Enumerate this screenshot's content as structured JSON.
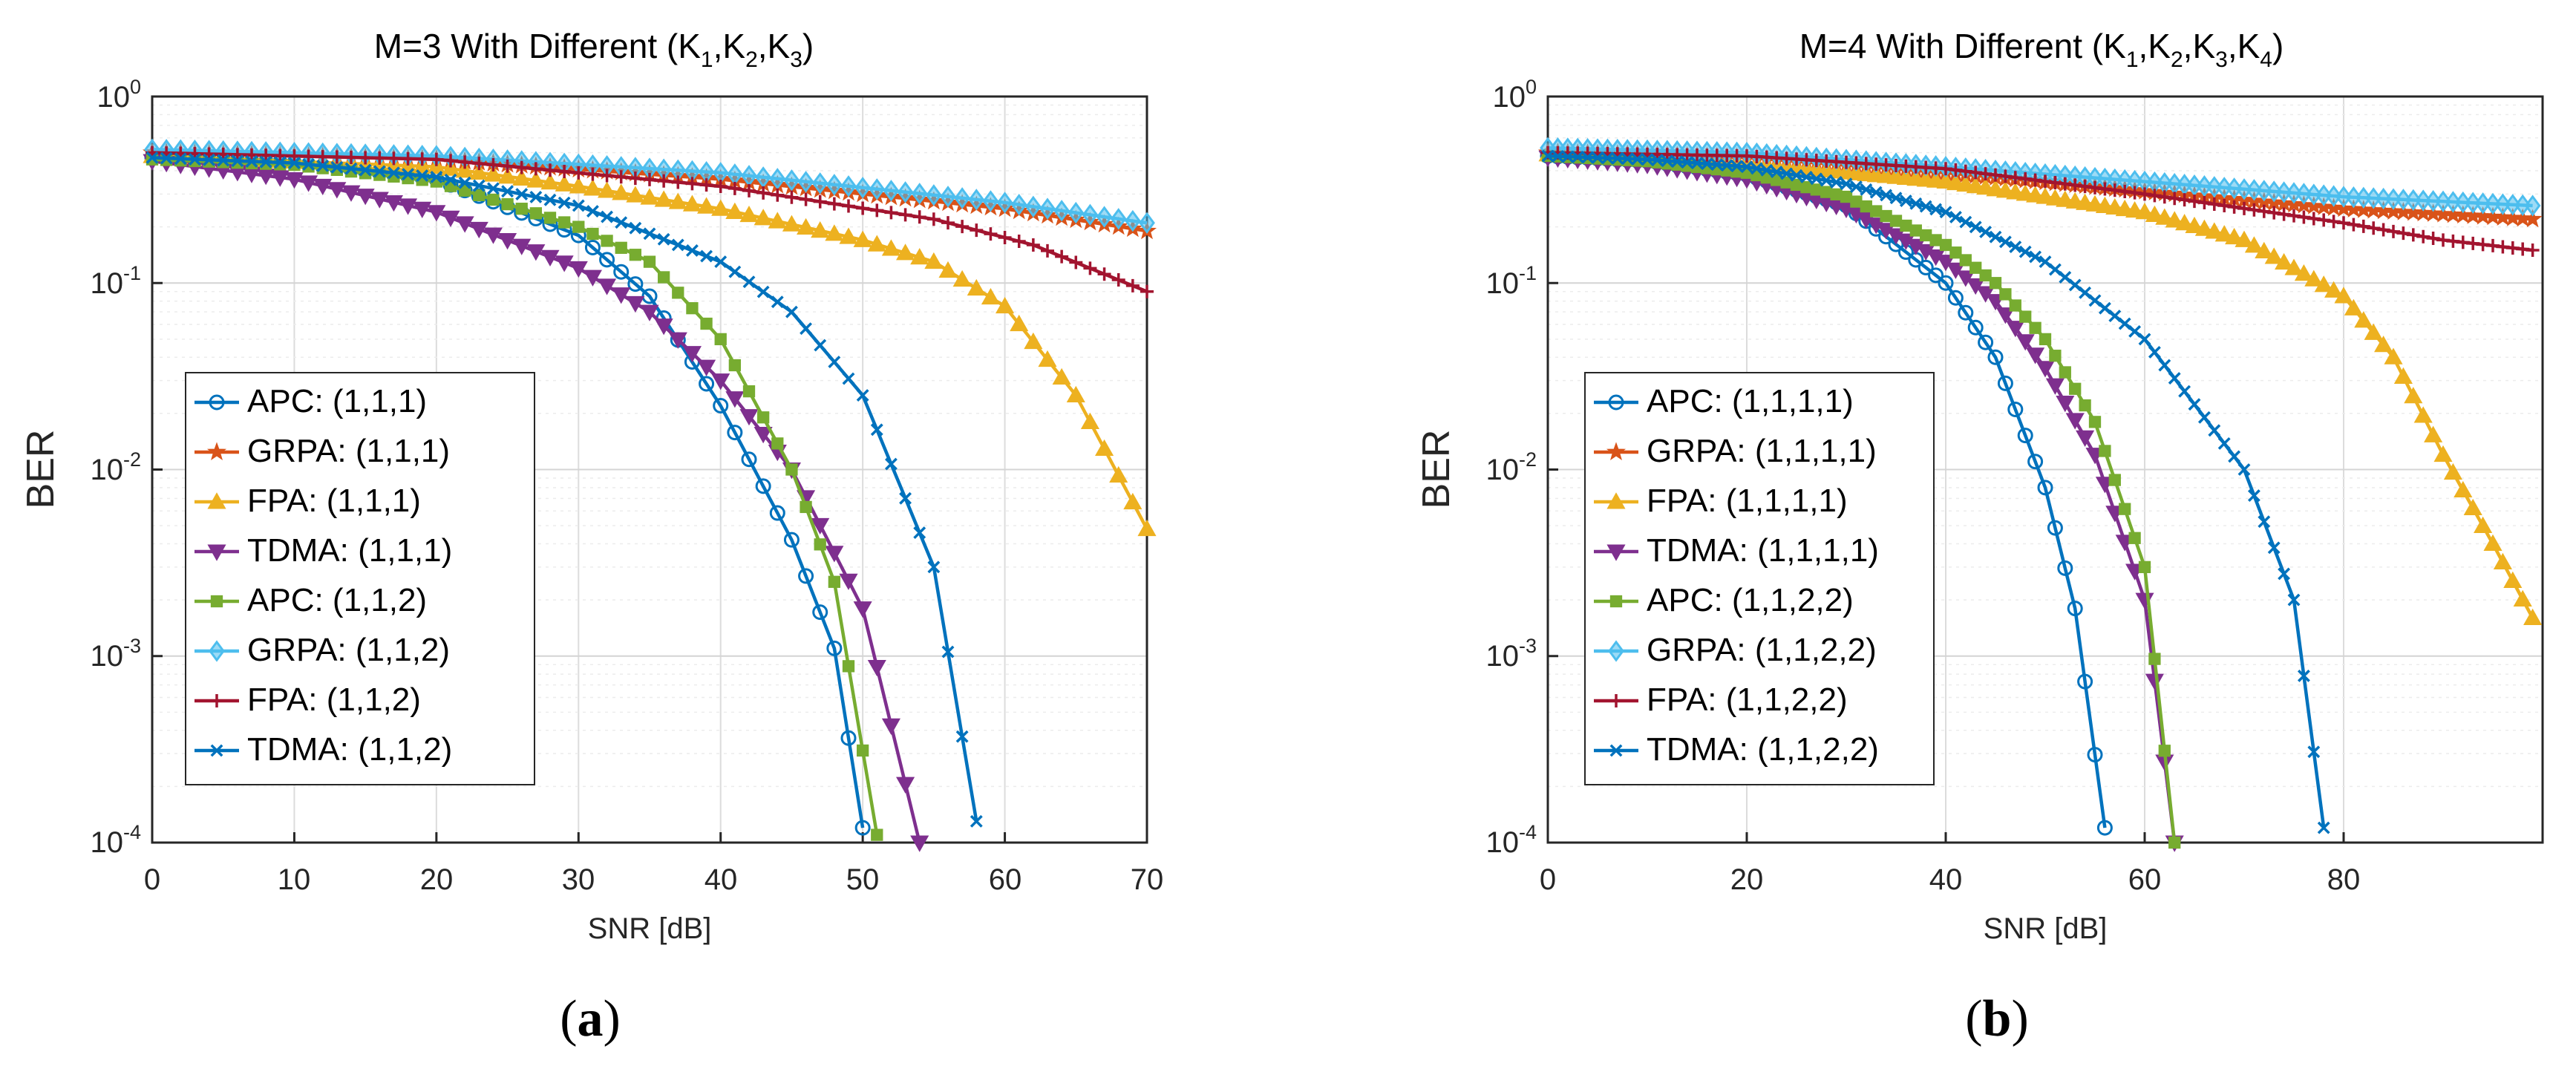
{
  "figure": {
    "caption_open": "(",
    "caption_close": ")"
  },
  "chart_data": [
    {
      "type": "line",
      "panel_label": "a",
      "title_prefix": "M=3 With Different (",
      "title_vars": [
        "K",
        "K",
        "K"
      ],
      "title_subscripts": [
        "1",
        "2",
        "3"
      ],
      "title_suffix": ")",
      "xlabel": "SNR [dB]",
      "ylabel": "BER",
      "yscale": "log",
      "xlim": [
        0,
        70
      ],
      "ylim": [
        0.0001,
        1
      ],
      "xticks": [
        0,
        10,
        20,
        30,
        40,
        50,
        60,
        70
      ],
      "xtick_labels": [
        "0",
        "10",
        "20",
        "30",
        "40",
        "50",
        "60",
        "70"
      ],
      "yticks": [
        1,
        0.1,
        0.01,
        0.001,
        0.0001
      ],
      "ytick_bases": [
        "10",
        "10",
        "10",
        "10",
        "10"
      ],
      "ytick_exponents": [
        "0",
        "-1",
        "-2",
        "-3",
        "-4"
      ],
      "grid": true,
      "legend_position": "lower-left",
      "series": [
        {
          "name": "APC: (1,1,1)",
          "color": "#0072BD",
          "marker": "circle",
          "x_end": 50,
          "points": [
            [
              0,
              0.47
            ],
            [
              10,
              0.44
            ],
            [
              20,
              0.36
            ],
            [
              30,
              0.18
            ],
            [
              35,
              0.085
            ],
            [
              40,
              0.022
            ],
            [
              45,
              0.0042
            ],
            [
              48,
              0.0011
            ],
            [
              50,
              0.00012
            ]
          ]
        },
        {
          "name": "GRPA: (1,1,1)",
          "color": "#D95319",
          "marker": "star",
          "x_end": 70,
          "points": [
            [
              0,
              0.5
            ],
            [
              20,
              0.46
            ],
            [
              40,
              0.36
            ],
            [
              60,
              0.25
            ],
            [
              70,
              0.19
            ]
          ]
        },
        {
          "name": "FPA: (1,1,1)",
          "color": "#EDB120",
          "marker": "triangle-up",
          "x_end": 70,
          "points": [
            [
              0,
              0.48
            ],
            [
              20,
              0.42
            ],
            [
              30,
              0.33
            ],
            [
              40,
              0.25
            ],
            [
              50,
              0.17
            ],
            [
              55,
              0.13
            ],
            [
              60,
              0.075
            ],
            [
              65,
              0.025
            ],
            [
              70,
              0.0048
            ]
          ]
        },
        {
          "name": "TDMA: (1,1,1)",
          "color": "#7E2F8E",
          "marker": "triangle-down",
          "x_end": 54,
          "points": [
            [
              0,
              0.45
            ],
            [
              10,
              0.36
            ],
            [
              20,
              0.24
            ],
            [
              30,
              0.12
            ],
            [
              35,
              0.07
            ],
            [
              40,
              0.03
            ],
            [
              45,
              0.01
            ],
            [
              50,
              0.0018
            ],
            [
              54,
              0.0001
            ]
          ]
        },
        {
          "name": "APC: (1,1,2)",
          "color": "#77AC30",
          "marker": "square",
          "x_end": 51,
          "points": [
            [
              0,
              0.46
            ],
            [
              10,
              0.43
            ],
            [
              20,
              0.35
            ],
            [
              30,
              0.2
            ],
            [
              35,
              0.13
            ],
            [
              40,
              0.05
            ],
            [
              45,
              0.01
            ],
            [
              48,
              0.0025
            ],
            [
              51,
              0.00011
            ]
          ]
        },
        {
          "name": "GRPA: (1,1,2)",
          "color": "#4DBEEE",
          "marker": "diamond",
          "x_end": 70,
          "points": [
            [
              0,
              0.52
            ],
            [
              20,
              0.48
            ],
            [
              40,
              0.39
            ],
            [
              60,
              0.27
            ],
            [
              70,
              0.21
            ]
          ]
        },
        {
          "name": "FPA: (1,1,2)",
          "color": "#A2142F",
          "marker": "plus",
          "x_end": 70,
          "points": [
            [
              0,
              0.5
            ],
            [
              20,
              0.46
            ],
            [
              40,
              0.33
            ],
            [
              55,
              0.22
            ],
            [
              62,
              0.16
            ],
            [
              70,
              0.09
            ]
          ]
        },
        {
          "name": "TDMA: (1,1,2)",
          "color": "#0072BD",
          "marker": "x",
          "x_end": 58,
          "points": [
            [
              0,
              0.47
            ],
            [
              10,
              0.44
            ],
            [
              20,
              0.37
            ],
            [
              30,
              0.26
            ],
            [
              40,
              0.13
            ],
            [
              45,
              0.07
            ],
            [
              50,
              0.025
            ],
            [
              55,
              0.003
            ],
            [
              58,
              0.00013
            ]
          ]
        }
      ]
    },
    {
      "type": "line",
      "panel_label": "b",
      "title_prefix": "M=4 With Different (",
      "title_vars": [
        "K",
        "K",
        "K",
        "K"
      ],
      "title_subscripts": [
        "1",
        "2",
        "3",
        "4"
      ],
      "title_suffix": ")",
      "xlabel": "SNR [dB]",
      "ylabel": "BER",
      "yscale": "log",
      "xlim": [
        0,
        100
      ],
      "ylim": [
        0.0001,
        1
      ],
      "xticks": [
        0,
        20,
        40,
        60,
        80
      ],
      "xtick_labels": [
        "0",
        "20",
        "40",
        "60",
        "80"
      ],
      "yticks": [
        1,
        0.1,
        0.01,
        0.001,
        0.0001
      ],
      "ytick_bases": [
        "10",
        "10",
        "10",
        "10",
        "10"
      ],
      "ytick_exponents": [
        "0",
        "-1",
        "-2",
        "-3",
        "-4"
      ],
      "grid": true,
      "legend_position": "lower-left",
      "series": [
        {
          "name": "APC: (1,1,1,1)",
          "color": "#0072BD",
          "marker": "circle",
          "x_end": 56,
          "points": [
            [
              0,
              0.48
            ],
            [
              10,
              0.45
            ],
            [
              20,
              0.38
            ],
            [
              30,
              0.26
            ],
            [
              40,
              0.1
            ],
            [
              45,
              0.04
            ],
            [
              50,
              0.008
            ],
            [
              53,
              0.0018
            ],
            [
              56,
              0.00012
            ]
          ]
        },
        {
          "name": "GRPA: (1,1,1,1)",
          "color": "#D95319",
          "marker": "star",
          "x_end": 99,
          "points": [
            [
              0,
              0.5
            ],
            [
              20,
              0.47
            ],
            [
              40,
              0.39
            ],
            [
              60,
              0.31
            ],
            [
              80,
              0.25
            ],
            [
              99,
              0.22
            ]
          ]
        },
        {
          "name": "FPA: (1,1,1,1)",
          "color": "#EDB120",
          "marker": "triangle-up",
          "x_end": 99,
          "points": [
            [
              0,
              0.49
            ],
            [
              20,
              0.44
            ],
            [
              40,
              0.35
            ],
            [
              60,
              0.24
            ],
            [
              70,
              0.17
            ],
            [
              80,
              0.085
            ],
            [
              85,
              0.04
            ],
            [
              90,
              0.012
            ],
            [
              95,
              0.004
            ],
            [
              99,
              0.0016
            ]
          ]
        },
        {
          "name": "TDMA: (1,1,1,1)",
          "color": "#7E2F8E",
          "marker": "triangle-down",
          "x_end": 63,
          "points": [
            [
              0,
              0.47
            ],
            [
              10,
              0.43
            ],
            [
              20,
              0.36
            ],
            [
              30,
              0.25
            ],
            [
              40,
              0.13
            ],
            [
              45,
              0.08
            ],
            [
              50,
              0.035
            ],
            [
              55,
              0.012
            ],
            [
              60,
              0.002
            ],
            [
              63,
              0.0001
            ]
          ]
        },
        {
          "name": "APC: (1,1,2,2)",
          "color": "#77AC30",
          "marker": "square",
          "x_end": 63,
          "points": [
            [
              0,
              0.48
            ],
            [
              10,
              0.45
            ],
            [
              20,
              0.39
            ],
            [
              30,
              0.29
            ],
            [
              40,
              0.16
            ],
            [
              45,
              0.1
            ],
            [
              50,
              0.05
            ],
            [
              55,
              0.018
            ],
            [
              60,
              0.003
            ],
            [
              63,
              0.0001
            ]
          ]
        },
        {
          "name": "GRPA: (1,1,2,2)",
          "color": "#4DBEEE",
          "marker": "diamond",
          "x_end": 99,
          "points": [
            [
              0,
              0.53
            ],
            [
              20,
              0.5
            ],
            [
              40,
              0.42
            ],
            [
              60,
              0.35
            ],
            [
              80,
              0.29
            ],
            [
              99,
              0.26
            ]
          ]
        },
        {
          "name": "FPA: (1,1,2,2)",
          "color": "#A2142F",
          "marker": "plus",
          "x_end": 99,
          "points": [
            [
              0,
              0.5
            ],
            [
              20,
              0.48
            ],
            [
              40,
              0.41
            ],
            [
              60,
              0.3
            ],
            [
              80,
              0.21
            ],
            [
              90,
              0.17
            ],
            [
              99,
              0.15
            ]
          ]
        },
        {
          "name": "TDMA: (1,1,2,2)",
          "color": "#0072BD",
          "marker": "x",
          "x_end": 78,
          "points": [
            [
              0,
              0.48
            ],
            [
              10,
              0.46
            ],
            [
              20,
              0.42
            ],
            [
              30,
              0.34
            ],
            [
              40,
              0.24
            ],
            [
              50,
              0.13
            ],
            [
              60,
              0.05
            ],
            [
              70,
              0.01
            ],
            [
              75,
              0.002
            ],
            [
              78,
              0.00012
            ]
          ]
        }
      ]
    }
  ]
}
